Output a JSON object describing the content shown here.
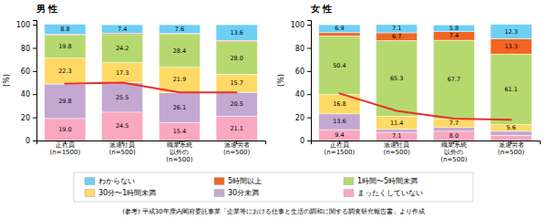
{
  "chart_data": [
    {
      "type": "bar",
      "stacked": true,
      "title": "男 性",
      "ylabel": "(%)",
      "categories": [
        "正社員\n(n=1500)",
        "派遣社員\n(n=500)",
        "職業系統\n以外の\n(n=500)",
        "派遣労者\n(n=500)"
      ],
      "ylim": [
        0,
        104
      ],
      "yticks": [
        0,
        20,
        40,
        60,
        80,
        100
      ],
      "data_labels": true,
      "legend": "bottom",
      "series": [
        {
          "name": "まったくしていない",
          "color": "#f9a8c0",
          "values": [
            19.0,
            24.5,
            15.4,
            21.1
          ],
          "value_labels": [
            "19.0",
            "24.5",
            "15.4",
            "21.1"
          ]
        },
        {
          "name": "30分未満",
          "color": "#c3a8d1",
          "values": [
            29.8,
            25.5,
            26.1,
            20.5
          ],
          "value_labels": [
            "29.8",
            "25.5",
            "26.1",
            "20.5"
          ]
        },
        {
          "name": "30分〜1時間未満",
          "color": "#ffd966",
          "values": [
            22.3,
            17.3,
            21.9,
            15.7
          ],
          "value_labels": [
            "22.3",
            "17.3",
            "21.9",
            "15.7"
          ]
        },
        {
          "name": "1時間〜5時間未満",
          "color": "#b5d96e",
          "values": [
            19.8,
            24.2,
            28.4,
            28.0
          ],
          "value_labels": [
            "19.8",
            "24.2",
            "28.4",
            "28.0"
          ]
        },
        {
          "name": "5時間以上",
          "color": "#f26522",
          "values": [
            0.7,
            1.1,
            0.6,
            1.1
          ],
          "value_labels": [
            null,
            null,
            null,
            null
          ]
        },
        {
          "name": "わからない",
          "color": "#6dcff6",
          "values": [
            8.8,
            7.4,
            7.6,
            13.6
          ],
          "value_labels": [
            "8.8",
            "7.4",
            "7.6",
            "13.6"
          ]
        },
        {
          "type": "line",
          "color": "#e8302a",
          "values": [
            49.0,
            50.0,
            41.5,
            41.6
          ]
        }
      ]
    },
    {
      "type": "bar",
      "stacked": true,
      "title": "女 性",
      "ylabel": "(%)",
      "categories": [
        "正社員\n(n=1500)",
        "派遣社員\n(n=500)",
        "職業系統\n以外の\n(n=500)",
        "派遣労者\n(n=500)"
      ],
      "ylim": [
        0,
        104
      ],
      "yticks": [
        0,
        20,
        40,
        60,
        80,
        100
      ],
      "data_labels": true,
      "legend": "bottom",
      "series": [
        {
          "name": "まったくしていない",
          "color": "#f9a8c0",
          "values": [
            9.4,
            7.1,
            8.0,
            4.4
          ],
          "value_labels": [
            "9.4",
            "7.1",
            "8.0",
            null
          ]
        },
        {
          "name": "30分未満",
          "color": "#c3a8d1",
          "values": [
            13.6,
            2.5,
            3.2,
            3.6
          ],
          "value_labels": [
            "13.6",
            null,
            null,
            null
          ]
        },
        {
          "name": "30分〜1時間未満",
          "color": "#ffd966",
          "values": [
            16.8,
            11.4,
            7.7,
            5.6
          ],
          "value_labels": [
            "16.8",
            "11.4",
            "7.7",
            "5.6"
          ]
        },
        {
          "name": "1時間〜5時間未満",
          "color": "#b5d96e",
          "values": [
            50.4,
            65.3,
            67.7,
            61.1
          ],
          "value_labels": [
            "50.4",
            "65.3",
            "67.7",
            "61.1"
          ]
        },
        {
          "name": "5時間以上",
          "color": "#f26522",
          "values": [
            2.9,
            6.7,
            7.4,
            13.3
          ],
          "value_labels": [
            null,
            "6.7",
            "7.4",
            "13.3"
          ]
        },
        {
          "name": "わからない",
          "color": "#6dcff6",
          "values": [
            6.9,
            7.1,
            5.8,
            12.3
          ],
          "value_labels": [
            "6.9",
            "7.1",
            "5.8",
            "12.3"
          ]
        },
        {
          "type": "line",
          "color": "#e8302a",
          "values": [
            40.7,
            25.6,
            18.9,
            18.0
          ]
        }
      ]
    }
  ],
  "footnote": "(参考) 平成30年度内閣府委託事業「企業等における仕事と生活の調和に関する調査研究報告書」より作成"
}
